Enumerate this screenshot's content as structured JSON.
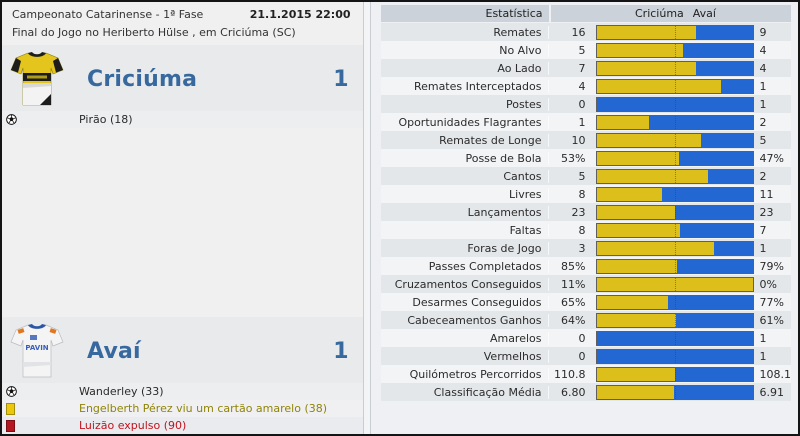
{
  "match": {
    "competition": "Campeonato Catarinense - 1ª Fase",
    "datetime": "21.1.2015 22:00",
    "status_line": "Final do Jogo no Heriberto Hülse , em Criciúma (SC)",
    "home": {
      "name": "Criciúma",
      "score": "1",
      "scorers": "Pirão (18)"
    },
    "away": {
      "name": "Avaí",
      "score": "1",
      "scorers": "Wanderley (33)"
    },
    "events": [
      {
        "type": "yellow-card",
        "text": "Engelberth Pérez viu um cartão amarelo (38)"
      },
      {
        "type": "red-card",
        "text": "Luizão expulso (90)"
      }
    ]
  },
  "stats": {
    "header": {
      "label": "Estatística",
      "home": "Criciúma",
      "away": "Avaí"
    },
    "rows": [
      {
        "label": "Remates",
        "home": "16",
        "away": "9"
      },
      {
        "label": "No Alvo",
        "home": "5",
        "away": "4"
      },
      {
        "label": "Ao Lado",
        "home": "7",
        "away": "4"
      },
      {
        "label": "Remates Interceptados",
        "home": "4",
        "away": "1"
      },
      {
        "label": "Postes",
        "home": "0",
        "away": "1"
      },
      {
        "label": "Oportunidades Flagrantes",
        "home": "1",
        "away": "2"
      },
      {
        "label": "Remates de Longe",
        "home": "10",
        "away": "5"
      },
      {
        "label": "Posse de Bola",
        "home": "53%",
        "away": "47%"
      },
      {
        "label": "Cantos",
        "home": "5",
        "away": "2"
      },
      {
        "label": "Livres",
        "home": "8",
        "away": "11"
      },
      {
        "label": "Lançamentos",
        "home": "23",
        "away": "23"
      },
      {
        "label": "Faltas",
        "home": "8",
        "away": "7"
      },
      {
        "label": "Foras de Jogo",
        "home": "3",
        "away": "1"
      },
      {
        "label": "Passes Completados",
        "home": "85%",
        "away": "79%"
      },
      {
        "label": "Cruzamentos Conseguidos",
        "home": "11%",
        "away": "0%"
      },
      {
        "label": "Desarmes Conseguidos",
        "home": "65%",
        "away": "77%"
      },
      {
        "label": "Cabeceamentos Ganhos",
        "home": "64%",
        "away": "61%"
      },
      {
        "label": "Amarelos",
        "home": "0",
        "away": "1"
      },
      {
        "label": "Vermelhos",
        "home": "0",
        "away": "1"
      },
      {
        "label": "Quilómetros Percorridos",
        "home": "110.8",
        "away": "108.1"
      },
      {
        "label": "Classificação Média",
        "home": "6.80",
        "away": "6.91"
      }
    ]
  },
  "colors": {
    "home_bar": "#ddbf1b",
    "away_bar": "#2368d2",
    "accent_text": "#37699f",
    "yellow_card": "#ecc70e",
    "red_card": "#b5161f"
  },
  "chart_data": {
    "type": "bar",
    "title": "Estatística",
    "categories": [
      "Remates",
      "No Alvo",
      "Ao Lado",
      "Remates Interceptados",
      "Postes",
      "Oportunidades Flagrantes",
      "Remates de Longe",
      "Posse de Bola",
      "Cantos",
      "Livres",
      "Lançamentos",
      "Faltas",
      "Foras de Jogo",
      "Passes Completados",
      "Cruzamentos Conseguidos",
      "Desarmes Conseguidos",
      "Cabeceamentos Ganhos",
      "Amarelos",
      "Vermelhos",
      "Quilómetros Percorridos",
      "Classificação Média"
    ],
    "series": [
      {
        "name": "Criciúma",
        "values": [
          16,
          5,
          7,
          4,
          0,
          1,
          10,
          53,
          5,
          8,
          23,
          8,
          3,
          85,
          11,
          65,
          64,
          0,
          0,
          110.8,
          6.8
        ]
      },
      {
        "name": "Avaí",
        "values": [
          9,
          4,
          4,
          1,
          1,
          2,
          5,
          47,
          2,
          11,
          23,
          7,
          1,
          79,
          0,
          77,
          61,
          1,
          1,
          108.1,
          6.91
        ]
      }
    ],
    "legend_position": "top",
    "bar_style": "stacked-share-of-total"
  }
}
